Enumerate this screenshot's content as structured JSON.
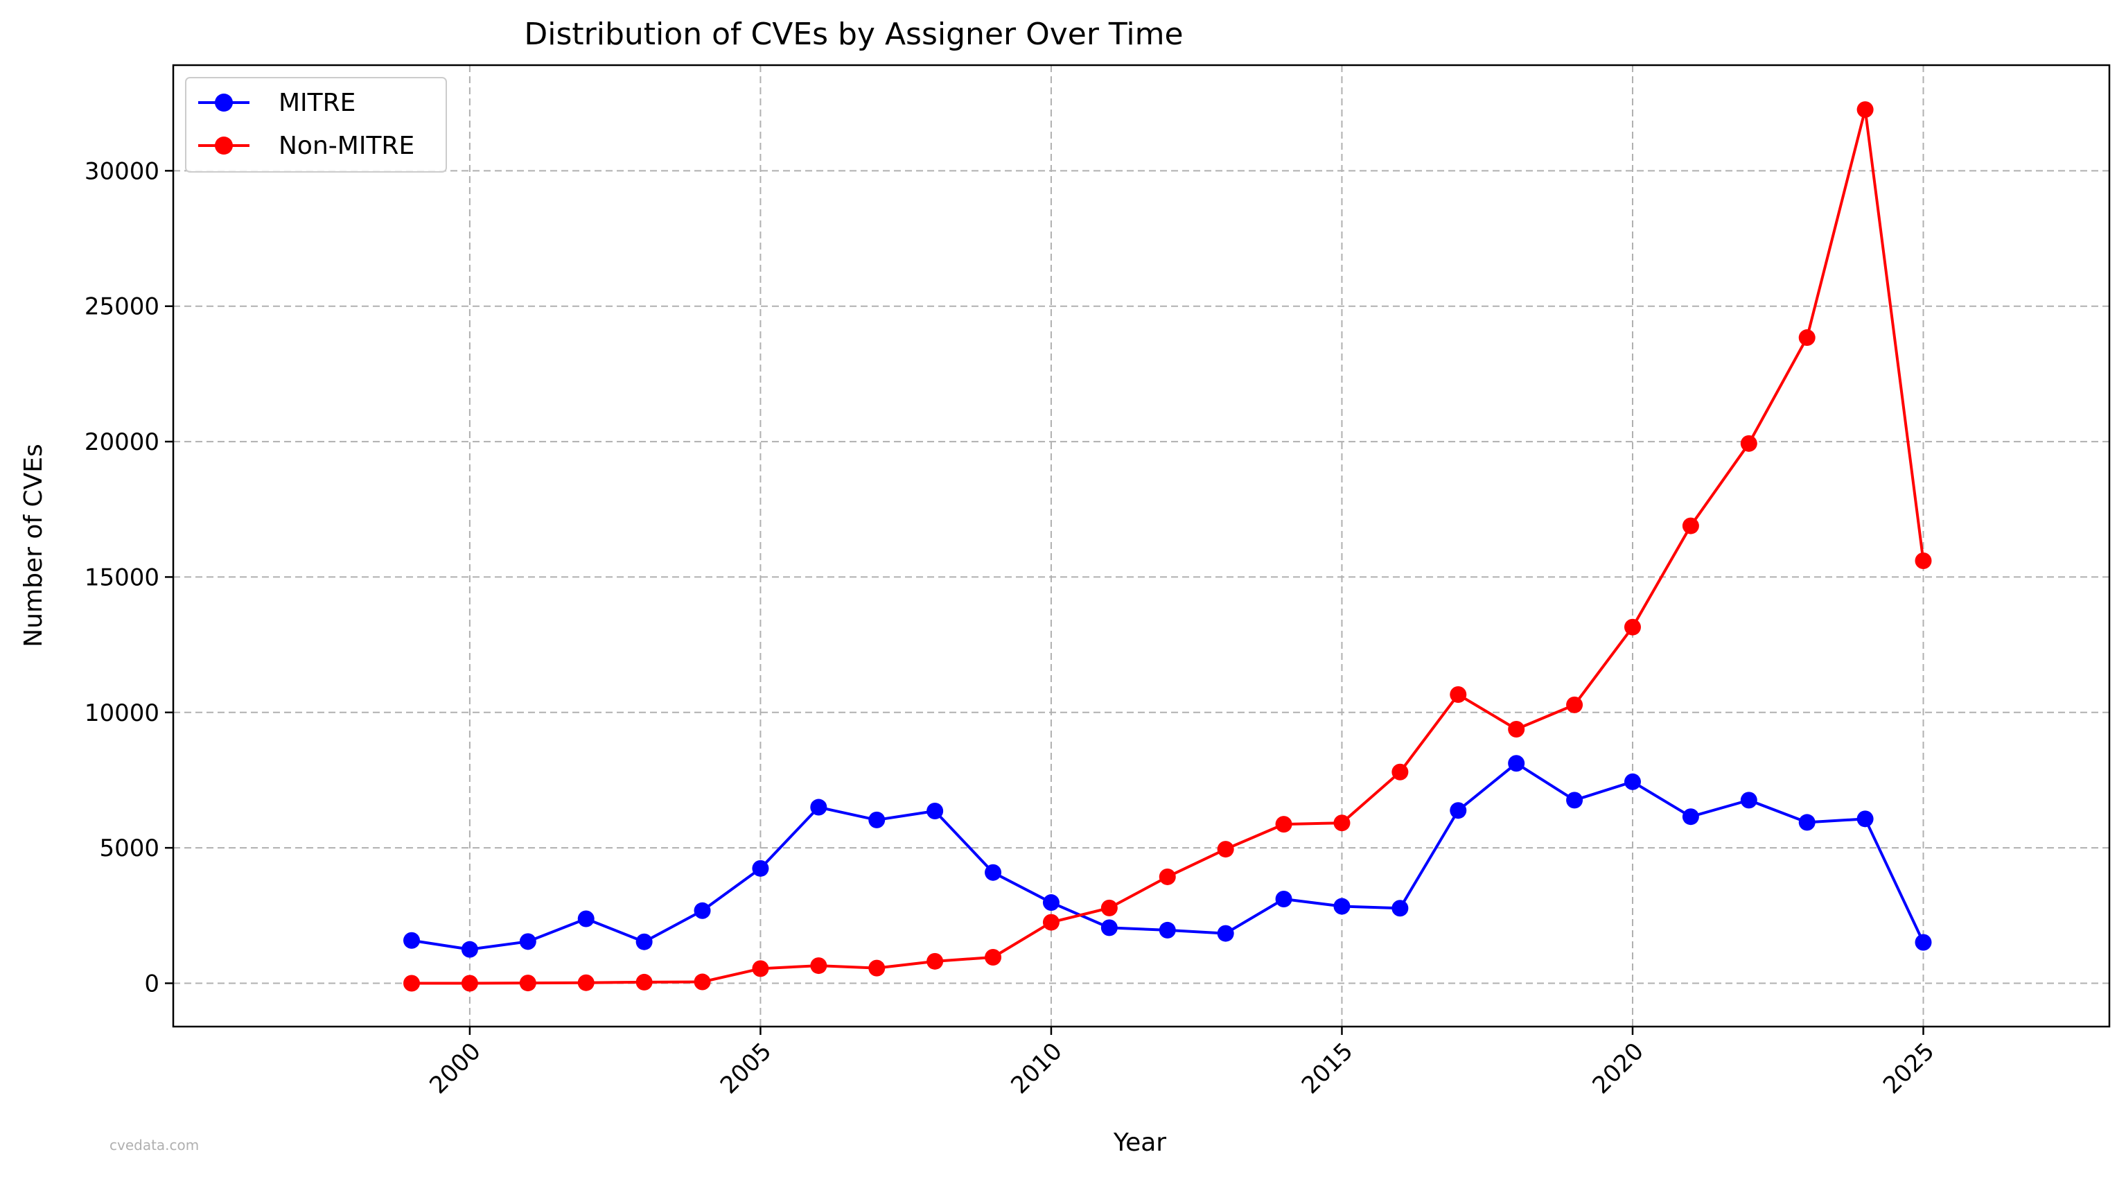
{
  "chart_data": {
    "type": "line",
    "title": "Distribution of CVEs by Assigner Over Time",
    "xlabel": "Year",
    "ylabel": "Number of CVEs",
    "x": [
      1999,
      2000,
      2001,
      2002,
      2003,
      2004,
      2005,
      2006,
      2007,
      2008,
      2009,
      2010,
      2011,
      2012,
      2013,
      2014,
      2015,
      2016,
      2017,
      2018,
      2019,
      2020,
      2021,
      2022,
      2023,
      2024,
      2025
    ],
    "xlim": [
      1994.9,
      2028.2
    ],
    "ylim": [
      -1600,
      33900
    ],
    "xticks": [
      2000,
      2005,
      2010,
      2015,
      2020,
      2025
    ],
    "xtick_labels": [
      "2000",
      "2005",
      "2010",
      "2015",
      "2020",
      "2025"
    ],
    "yticks": [
      0,
      5000,
      10000,
      15000,
      20000,
      25000,
      30000
    ],
    "ytick_labels": [
      "0",
      "5000",
      "10000",
      "15000",
      "20000",
      "25000",
      "30000"
    ],
    "grid": true,
    "legend_position": "top-left",
    "series": [
      {
        "name": "MITRE",
        "color": "#0000ff",
        "values": [
          1580,
          1250,
          1540,
          2380,
          1530,
          2680,
          4240,
          6500,
          6030,
          6360,
          4090,
          2980,
          2050,
          1960,
          1840,
          3110,
          2840,
          2770,
          6380,
          8120,
          6760,
          7440,
          6150,
          6760,
          5940,
          6070,
          1510
        ]
      },
      {
        "name": "Non-MITRE",
        "color": "#ff0000",
        "values": [
          0,
          0,
          10,
          20,
          40,
          50,
          540,
          650,
          560,
          810,
          960,
          2250,
          2780,
          3930,
          4950,
          5870,
          5920,
          7800,
          10660,
          9380,
          10280,
          13150,
          16890,
          19930,
          23840,
          32260,
          15600
        ]
      }
    ]
  },
  "watermark": "cvedata.com"
}
